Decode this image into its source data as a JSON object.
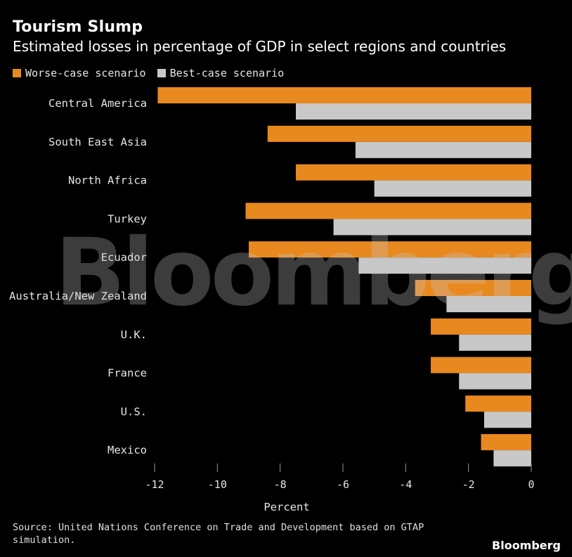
{
  "header": {
    "title": "Tourism Slump",
    "subtitle": "Estimated losses in percentage of GDP in select regions and countries"
  },
  "legend": {
    "worse_label": "Worse-case scenario",
    "best_label": "Best-case scenario"
  },
  "colors": {
    "worse": "#E8891F",
    "best": "#C8C8C8",
    "axis": "#9a9a9a",
    "label": "#e6e6e6"
  },
  "footer": {
    "source": "Source: United Nations Conference on Trade and Development based on GTAP simulation.",
    "brand": "Bloomberg"
  },
  "watermark": "Bloomberg",
  "chart_data": {
    "type": "bar",
    "orientation": "horizontal",
    "title": "Tourism Slump",
    "xlabel": "Percent",
    "ylabel": "",
    "xlim": [
      -12,
      0
    ],
    "xticks": [
      -12,
      -10,
      -8,
      -6,
      -4,
      -2,
      0
    ],
    "categories": [
      "Central America",
      "South East Asia",
      "North Africa",
      "Turkey",
      "Ecuador",
      "Australia/New Zealand",
      "U.K.",
      "France",
      "U.S.",
      "Mexico"
    ],
    "series": [
      {
        "name": "Worse-case scenario",
        "values": [
          -11.9,
          -8.4,
          -7.5,
          -9.1,
          -9.0,
          -3.7,
          -3.2,
          -3.2,
          -2.1,
          -1.6
        ]
      },
      {
        "name": "Best-case scenario",
        "values": [
          -7.5,
          -5.6,
          -5.0,
          -6.3,
          -5.5,
          -2.7,
          -2.3,
          -2.3,
          -1.5,
          -1.2
        ]
      }
    ],
    "legend_position": "top-left",
    "grid": false
  }
}
